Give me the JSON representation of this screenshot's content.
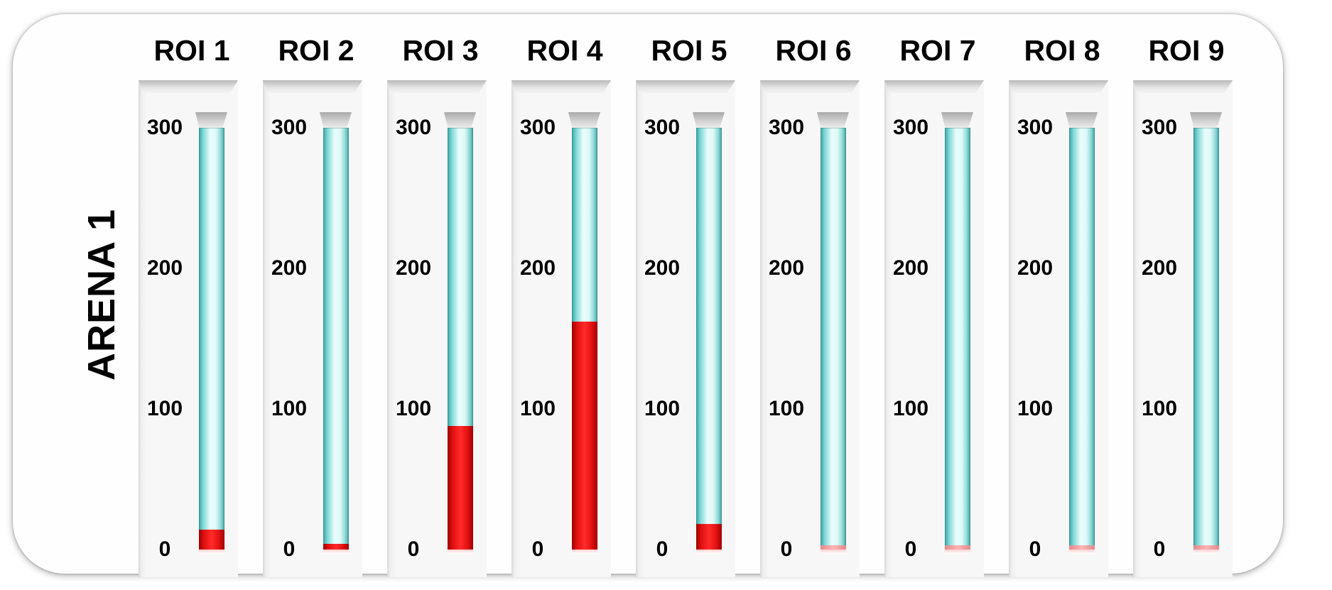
{
  "arena_label": "ARENA 1",
  "chart_data": {
    "type": "bar",
    "title": "",
    "group_label": "ARENA 1",
    "categories": [
      "ROI 1",
      "ROI 2",
      "ROI 3",
      "ROI 4",
      "ROI 5",
      "ROI 6",
      "ROI 7",
      "ROI 8",
      "ROI 9"
    ],
    "values": [
      14,
      4,
      88,
      162,
      18,
      0,
      0,
      0,
      0
    ],
    "ylim": [
      0,
      300
    ],
    "y_ticks": [
      0,
      100,
      200,
      300
    ],
    "y_tick_labels": [
      "0",
      "100",
      "200",
      "300"
    ],
    "style": "thermometer-gauge",
    "colors": {
      "fill": "#e01010",
      "tube": "#8ed9d6",
      "background": "#fefefe"
    },
    "grid": false,
    "legend": "none"
  }
}
